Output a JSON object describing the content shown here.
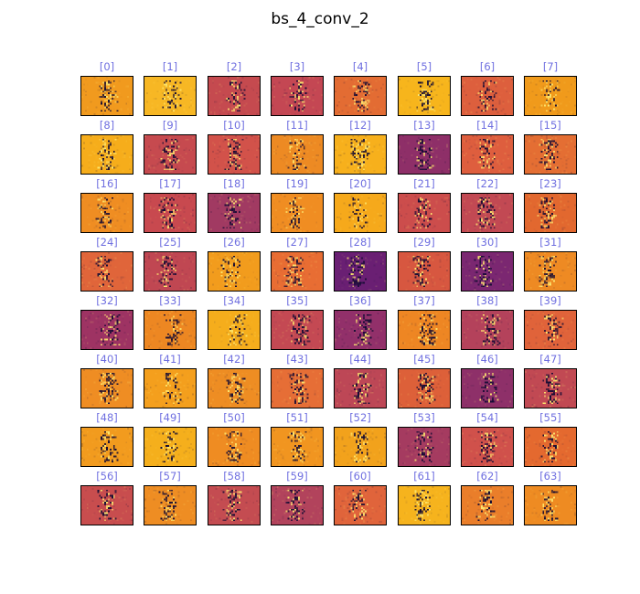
{
  "figure": {
    "title": "bs_4_conv_2"
  },
  "colormap": "inferno",
  "cells": [
    {
      "label": "[0]",
      "base": "#f19a1e"
    },
    {
      "label": "[1]",
      "base": "#f7b724"
    },
    {
      "label": "[2]",
      "base": "#c54a4f"
    },
    {
      "label": "[3]",
      "base": "#c44753"
    },
    {
      "label": "[4]",
      "base": "#e36c33"
    },
    {
      "label": "[5]",
      "base": "#f7b51c"
    },
    {
      "label": "[6]",
      "base": "#dd5f3d"
    },
    {
      "label": "[7]",
      "base": "#f09a1b"
    },
    {
      "label": "[8]",
      "base": "#f6ad1b"
    },
    {
      "label": "[9]",
      "base": "#c64a4f"
    },
    {
      "label": "[10]",
      "base": "#d2524a"
    },
    {
      "label": "[11]",
      "base": "#ed8a23"
    },
    {
      "label": "[12]",
      "base": "#f7b01c"
    },
    {
      "label": "[13]",
      "base": "#8e2f68"
    },
    {
      "label": "[14]",
      "base": "#de5e3e"
    },
    {
      "label": "[15]",
      "base": "#e46e33"
    },
    {
      "label": "[16]",
      "base": "#ef8d22"
    },
    {
      "label": "[17]",
      "base": "#c8494f"
    },
    {
      "label": "[18]",
      "base": "#a13a62"
    },
    {
      "label": "[19]",
      "base": "#f08d22"
    },
    {
      "label": "[20]",
      "base": "#f6a91b"
    },
    {
      "label": "[21]",
      "base": "#cc4d4c"
    },
    {
      "label": "[22]",
      "base": "#c24953"
    },
    {
      "label": "[23]",
      "base": "#e2682f"
    },
    {
      "label": "[24]",
      "base": "#e0653a"
    },
    {
      "label": "[25]",
      "base": "#c04752"
    },
    {
      "label": "[26]",
      "base": "#f29c1d"
    },
    {
      "label": "[27]",
      "base": "#e86d33"
    },
    {
      "label": "[28]",
      "base": "#6a1f73"
    },
    {
      "label": "[29]",
      "base": "#d75740"
    },
    {
      "label": "[30]",
      "base": "#7b2771"
    },
    {
      "label": "[31]",
      "base": "#ee8a23"
    },
    {
      "label": "[32]",
      "base": "#9e3363"
    },
    {
      "label": "[33]",
      "base": "#ed8722"
    },
    {
      "label": "[34]",
      "base": "#f5ad1c"
    },
    {
      "label": "[35]",
      "base": "#c44953"
    },
    {
      "label": "[36]",
      "base": "#92306a"
    },
    {
      "label": "[37]",
      "base": "#ee8623"
    },
    {
      "label": "[38]",
      "base": "#b4425b"
    },
    {
      "label": "[39]",
      "base": "#e0633a"
    },
    {
      "label": "[40]",
      "base": "#ef8d23"
    },
    {
      "label": "[41]",
      "base": "#f49f1d"
    },
    {
      "label": "[42]",
      "base": "#ee8d23"
    },
    {
      "label": "[43]",
      "base": "#e66e36"
    },
    {
      "label": "[44]",
      "base": "#bd4756"
    },
    {
      "label": "[45]",
      "base": "#dd6039"
    },
    {
      "label": "[46]",
      "base": "#8e3069"
    },
    {
      "label": "[47]",
      "base": "#c14953"
    },
    {
      "label": "[48]",
      "base": "#f29b1e"
    },
    {
      "label": "[49]",
      "base": "#f5af1c"
    },
    {
      "label": "[50]",
      "base": "#ef8c22"
    },
    {
      "label": "[51]",
      "base": "#f19520"
    },
    {
      "label": "[52]",
      "base": "#f2a21c"
    },
    {
      "label": "[53]",
      "base": "#a53b60"
    },
    {
      "label": "[54]",
      "base": "#d0514b"
    },
    {
      "label": "[55]",
      "base": "#e4692f"
    },
    {
      "label": "[56]",
      "base": "#c84d4e"
    },
    {
      "label": "[57]",
      "base": "#ee8d23"
    },
    {
      "label": "[58]",
      "base": "#c44c51"
    },
    {
      "label": "[59]",
      "base": "#b2435c"
    },
    {
      "label": "[60]",
      "base": "#e0643b"
    },
    {
      "label": "[61]",
      "base": "#f6b31d"
    },
    {
      "label": "[62]",
      "base": "#ea7e2a"
    },
    {
      "label": "[63]",
      "base": "#ee8b22"
    }
  ]
}
